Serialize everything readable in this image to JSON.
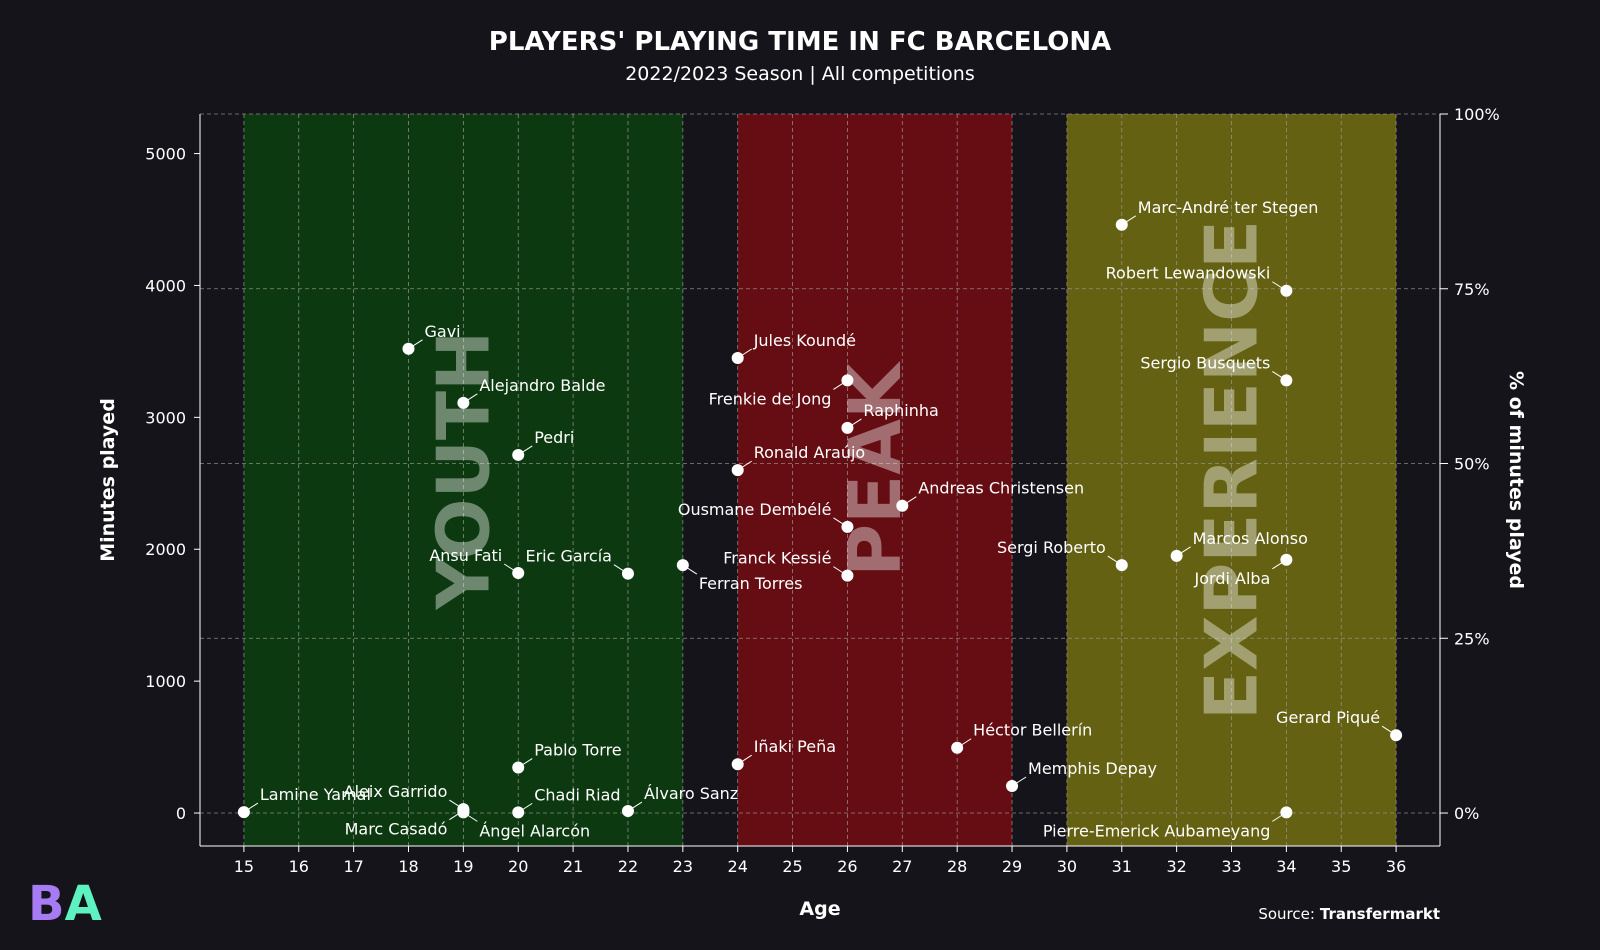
{
  "chart_data": {
    "type": "scatter",
    "title": "PLAYERS' PLAYING TIME IN FC BARCELONA",
    "subtitle": "2022/2023 Season | All competitions",
    "xlabel": "Age",
    "ylabel": "Minutes played",
    "ylabel_right": "% of minutes played",
    "xlim": [
      14.2,
      36.8
    ],
    "ylim": [
      -250,
      5300
    ],
    "x_ticks": [
      15,
      16,
      17,
      18,
      19,
      20,
      21,
      22,
      23,
      24,
      25,
      26,
      27,
      28,
      29,
      30,
      31,
      32,
      33,
      34,
      35,
      36
    ],
    "y_ticks": [
      0,
      1000,
      2000,
      3000,
      4000,
      5000
    ],
    "y2_ticks": [
      {
        "value": 0,
        "label": "0%"
      },
      {
        "value": 1325,
        "label": "25%"
      },
      {
        "value": 2650,
        "label": "50%"
      },
      {
        "value": 3975,
        "label": "75%"
      },
      {
        "value": 5300,
        "label": "100%"
      }
    ],
    "grid": true,
    "zones": [
      {
        "label": "YOUTH",
        "x_range": [
          15,
          23
        ],
        "color": "#0c3910"
      },
      {
        "label": "PEAK",
        "x_range": [
          24,
          29
        ],
        "color": "#650d13"
      },
      {
        "label": "EXPERIENCE",
        "x_range": [
          30,
          36
        ],
        "color": "#646112"
      }
    ],
    "points": [
      {
        "name": "Lamine Yamal",
        "x": 15,
        "y": 7,
        "pos": "upright"
      },
      {
        "name": "Gavi",
        "x": 18,
        "y": 3520,
        "pos": "upright"
      },
      {
        "name": "Alejandro Balde",
        "x": 19,
        "y": 3110,
        "pos": "upright"
      },
      {
        "name": "Aleix Garrido",
        "x": 19,
        "y": 30,
        "pos": "upleft"
      },
      {
        "name": "Marc Casadó",
        "x": 19,
        "y": 18,
        "pos": "downleft"
      },
      {
        "name": "Pedri",
        "x": 20,
        "y": 2715,
        "pos": "upright"
      },
      {
        "name": "Ansu Fati",
        "x": 20,
        "y": 1820,
        "pos": "upleft"
      },
      {
        "name": "Pablo Torre",
        "x": 20,
        "y": 345,
        "pos": "upright"
      },
      {
        "name": "Chadi Riad",
        "x": 20,
        "y": 5,
        "pos": "upright"
      },
      {
        "name": "Ángel Alarcón",
        "x": 19,
        "y": 5,
        "pos": "downright"
      },
      {
        "name": "Eric García",
        "x": 22,
        "y": 1815,
        "pos": "upleft"
      },
      {
        "name": "Álvaro Sanz",
        "x": 22,
        "y": 15,
        "pos": "upright"
      },
      {
        "name": "Ferran Torres",
        "x": 23,
        "y": 1880,
        "pos": "downright"
      },
      {
        "name": "Jules Koundé",
        "x": 24,
        "y": 3450,
        "pos": "upright"
      },
      {
        "name": "Ronald Araújo",
        "x": 24,
        "y": 2600,
        "pos": "upright"
      },
      {
        "name": "Iñaki Peña",
        "x": 24,
        "y": 370,
        "pos": "upright"
      },
      {
        "name": "Frenkie de Jong",
        "x": 26,
        "y": 3280,
        "pos": "downleft"
      },
      {
        "name": "Raphinha",
        "x": 26,
        "y": 2920,
        "pos": "upright"
      },
      {
        "name": "Ousmane Dembélé",
        "x": 26,
        "y": 2170,
        "pos": "upleft"
      },
      {
        "name": "Franck Kessié",
        "x": 26,
        "y": 1800,
        "pos": "upleft"
      },
      {
        "name": "Andreas Christensen",
        "x": 27,
        "y": 2330,
        "pos": "upright"
      },
      {
        "name": "Héctor Bellerín",
        "x": 28,
        "y": 495,
        "pos": "upright"
      },
      {
        "name": "Memphis Depay",
        "x": 29,
        "y": 205,
        "pos": "upright"
      },
      {
        "name": "Marc-André ter Stegen",
        "x": 31,
        "y": 4460,
        "pos": "upright"
      },
      {
        "name": "Sergi Roberto",
        "x": 31,
        "y": 1880,
        "pos": "upleft"
      },
      {
        "name": "Marcos Alonso",
        "x": 32,
        "y": 1950,
        "pos": "upright"
      },
      {
        "name": "Robert Lewandowski",
        "x": 34,
        "y": 3960,
        "pos": "upleft"
      },
      {
        "name": "Sergio Busquets",
        "x": 34,
        "y": 3280,
        "pos": "upleft"
      },
      {
        "name": "Jordi Alba",
        "x": 34,
        "y": 1920,
        "pos": "downleft"
      },
      {
        "name": "Pierre-Emerick Aubameyang",
        "x": 34,
        "y": 5,
        "pos": "downleft"
      },
      {
        "name": "Gerard Piqué",
        "x": 36,
        "y": 590,
        "pos": "upleft"
      }
    ]
  },
  "source": {
    "prefix": "Source:",
    "name": "Transfermarkt"
  },
  "logo": {
    "letter1": "B",
    "letter2": "A",
    "color1": "#a77bf3",
    "color2": "#5ef2c0"
  },
  "colors": {
    "background": "#15141b",
    "grid": "#9a9a9a",
    "point": "#ffffff",
    "text": "#ffffff"
  }
}
